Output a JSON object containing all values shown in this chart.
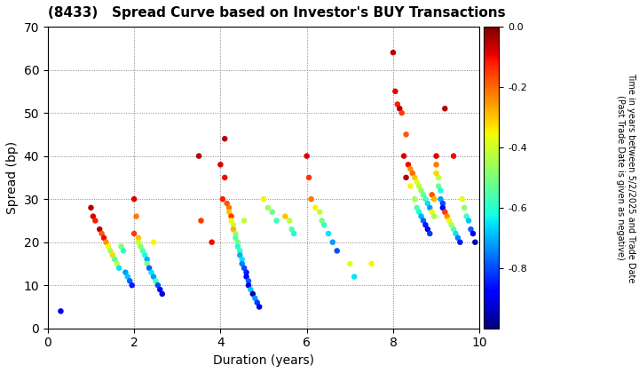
{
  "title": "(8433)   Spread Curve based on Investor's BUY Transactions",
  "xlabel": "Duration (years)",
  "ylabel": "Spread (bp)",
  "xlim": [
    0,
    10
  ],
  "ylim": [
    0,
    70
  ],
  "xticks": [
    0,
    2,
    4,
    6,
    8,
    10
  ],
  "yticks": [
    0,
    10,
    20,
    30,
    40,
    50,
    60,
    70
  ],
  "colorbar_label": "Time in years between 5/2/2025 and Trade Date\n(Past Trade Date is given as negative)",
  "cmap": "jet",
  "vmin": -1.0,
  "vmax": 0.0,
  "colorbar_ticks": [
    0.0,
    -0.2,
    -0.4,
    -0.6,
    -0.8
  ],
  "background_color": "#ffffff",
  "points": [
    [
      0.3,
      4,
      -0.9
    ],
    [
      1.0,
      28,
      -0.05
    ],
    [
      1.05,
      26,
      -0.08
    ],
    [
      1.1,
      25,
      -0.12
    ],
    [
      1.2,
      23,
      -0.05
    ],
    [
      1.25,
      22,
      -0.18
    ],
    [
      1.3,
      21,
      -0.1
    ],
    [
      1.35,
      20,
      -0.25
    ],
    [
      1.4,
      19,
      -0.35
    ],
    [
      1.45,
      18,
      -0.45
    ],
    [
      1.5,
      17,
      -0.32
    ],
    [
      1.55,
      16,
      -0.55
    ],
    [
      1.6,
      15,
      -0.42
    ],
    [
      1.65,
      14,
      -0.65
    ],
    [
      1.7,
      19,
      -0.5
    ],
    [
      1.75,
      18,
      -0.6
    ],
    [
      1.8,
      13,
      -0.72
    ],
    [
      1.85,
      12,
      -0.68
    ],
    [
      1.9,
      11,
      -0.78
    ],
    [
      1.95,
      10,
      -0.85
    ],
    [
      2.0,
      30,
      -0.08
    ],
    [
      2.0,
      22,
      -0.15
    ],
    [
      2.05,
      26,
      -0.22
    ],
    [
      2.1,
      21,
      -0.3
    ],
    [
      2.1,
      20,
      -0.4
    ],
    [
      2.15,
      19,
      -0.48
    ],
    [
      2.2,
      18,
      -0.55
    ],
    [
      2.25,
      17,
      -0.62
    ],
    [
      2.3,
      16,
      -0.7
    ],
    [
      2.3,
      15,
      -0.5
    ],
    [
      2.35,
      14,
      -0.78
    ],
    [
      2.4,
      13,
      -0.65
    ],
    [
      2.45,
      20,
      -0.35
    ],
    [
      2.45,
      12,
      -0.72
    ],
    [
      2.5,
      11,
      -0.58
    ],
    [
      2.55,
      10,
      -0.8
    ],
    [
      2.6,
      9,
      -0.88
    ],
    [
      2.65,
      8,
      -0.92
    ],
    [
      3.5,
      40,
      -0.05
    ],
    [
      3.55,
      25,
      -0.15
    ],
    [
      3.8,
      20,
      -0.1
    ],
    [
      4.0,
      38,
      -0.08
    ],
    [
      4.05,
      30,
      -0.12
    ],
    [
      4.1,
      44,
      -0.05
    ],
    [
      4.1,
      35,
      -0.1
    ],
    [
      4.15,
      29,
      -0.18
    ],
    [
      4.2,
      28,
      -0.22
    ],
    [
      4.2,
      27,
      -0.3
    ],
    [
      4.25,
      26,
      -0.15
    ],
    [
      4.25,
      25,
      -0.35
    ],
    [
      4.3,
      24,
      -0.4
    ],
    [
      4.3,
      23,
      -0.28
    ],
    [
      4.35,
      22,
      -0.45
    ],
    [
      4.35,
      21,
      -0.55
    ],
    [
      4.4,
      20,
      -0.5
    ],
    [
      4.4,
      19,
      -0.62
    ],
    [
      4.45,
      18,
      -0.58
    ],
    [
      4.45,
      17,
      -0.7
    ],
    [
      4.5,
      16,
      -0.65
    ],
    [
      4.5,
      15,
      -0.75
    ],
    [
      4.55,
      25,
      -0.42
    ],
    [
      4.55,
      14,
      -0.8
    ],
    [
      4.6,
      13,
      -0.85
    ],
    [
      4.6,
      12,
      -0.88
    ],
    [
      4.65,
      11,
      -0.78
    ],
    [
      4.65,
      10,
      -0.92
    ],
    [
      4.7,
      9,
      -0.68
    ],
    [
      4.75,
      8,
      -0.95
    ],
    [
      4.8,
      7,
      -0.72
    ],
    [
      4.85,
      6,
      -0.82
    ],
    [
      4.9,
      5,
      -0.9
    ],
    [
      5.0,
      30,
      -0.35
    ],
    [
      5.1,
      28,
      -0.45
    ],
    [
      5.2,
      27,
      -0.52
    ],
    [
      5.3,
      25,
      -0.58
    ],
    [
      5.5,
      26,
      -0.3
    ],
    [
      5.6,
      25,
      -0.42
    ],
    [
      5.65,
      23,
      -0.55
    ],
    [
      5.7,
      22,
      -0.62
    ],
    [
      6.0,
      40,
      -0.08
    ],
    [
      6.05,
      35,
      -0.15
    ],
    [
      6.1,
      30,
      -0.22
    ],
    [
      6.2,
      28,
      -0.35
    ],
    [
      6.3,
      27,
      -0.42
    ],
    [
      6.35,
      25,
      -0.5
    ],
    [
      6.4,
      24,
      -0.58
    ],
    [
      6.5,
      22,
      -0.65
    ],
    [
      6.6,
      20,
      -0.72
    ],
    [
      6.7,
      18,
      -0.8
    ],
    [
      7.0,
      15,
      -0.38
    ],
    [
      7.1,
      12,
      -0.65
    ],
    [
      7.5,
      15,
      -0.35
    ],
    [
      8.0,
      64,
      -0.05
    ],
    [
      8.05,
      55,
      -0.08
    ],
    [
      8.1,
      52,
      -0.12
    ],
    [
      8.15,
      51,
      -0.05
    ],
    [
      8.2,
      50,
      -0.15
    ],
    [
      8.25,
      40,
      -0.08
    ],
    [
      8.3,
      45,
      -0.18
    ],
    [
      8.3,
      35,
      -0.05
    ],
    [
      8.35,
      38,
      -0.1
    ],
    [
      8.4,
      37,
      -0.25
    ],
    [
      8.4,
      33,
      -0.35
    ],
    [
      8.45,
      36,
      -0.2
    ],
    [
      8.5,
      35,
      -0.3
    ],
    [
      8.5,
      30,
      -0.45
    ],
    [
      8.55,
      34,
      -0.38
    ],
    [
      8.55,
      28,
      -0.55
    ],
    [
      8.6,
      33,
      -0.42
    ],
    [
      8.6,
      27,
      -0.62
    ],
    [
      8.65,
      32,
      -0.48
    ],
    [
      8.65,
      26,
      -0.7
    ],
    [
      8.7,
      31,
      -0.52
    ],
    [
      8.7,
      25,
      -0.78
    ],
    [
      8.75,
      30,
      -0.58
    ],
    [
      8.75,
      24,
      -0.85
    ],
    [
      8.8,
      29,
      -0.65
    ],
    [
      8.8,
      23,
      -0.9
    ],
    [
      8.85,
      28,
      -0.72
    ],
    [
      8.85,
      22,
      -0.82
    ],
    [
      8.9,
      27,
      -0.35
    ],
    [
      8.9,
      31,
      -0.18
    ],
    [
      8.95,
      30,
      -0.28
    ],
    [
      8.95,
      26,
      -0.45
    ],
    [
      9.0,
      40,
      -0.08
    ],
    [
      9.0,
      38,
      -0.22
    ],
    [
      9.0,
      36,
      -0.32
    ],
    [
      9.05,
      35,
      -0.42
    ],
    [
      9.05,
      33,
      -0.52
    ],
    [
      9.1,
      32,
      -0.62
    ],
    [
      9.1,
      30,
      -0.72
    ],
    [
      9.15,
      29,
      -0.8
    ],
    [
      9.15,
      28,
      -0.88
    ],
    [
      9.2,
      51,
      -0.05
    ],
    [
      9.2,
      27,
      -0.15
    ],
    [
      9.25,
      26,
      -0.25
    ],
    [
      9.3,
      25,
      -0.35
    ],
    [
      9.35,
      24,
      -0.45
    ],
    [
      9.4,
      40,
      -0.1
    ],
    [
      9.4,
      23,
      -0.55
    ],
    [
      9.45,
      22,
      -0.65
    ],
    [
      9.5,
      21,
      -0.75
    ],
    [
      9.55,
      20,
      -0.85
    ],
    [
      9.6,
      30,
      -0.38
    ],
    [
      9.65,
      28,
      -0.48
    ],
    [
      9.7,
      26,
      -0.58
    ],
    [
      9.75,
      25,
      -0.68
    ],
    [
      9.8,
      23,
      -0.78
    ],
    [
      9.85,
      22,
      -0.88
    ],
    [
      9.9,
      20,
      -0.95
    ]
  ]
}
